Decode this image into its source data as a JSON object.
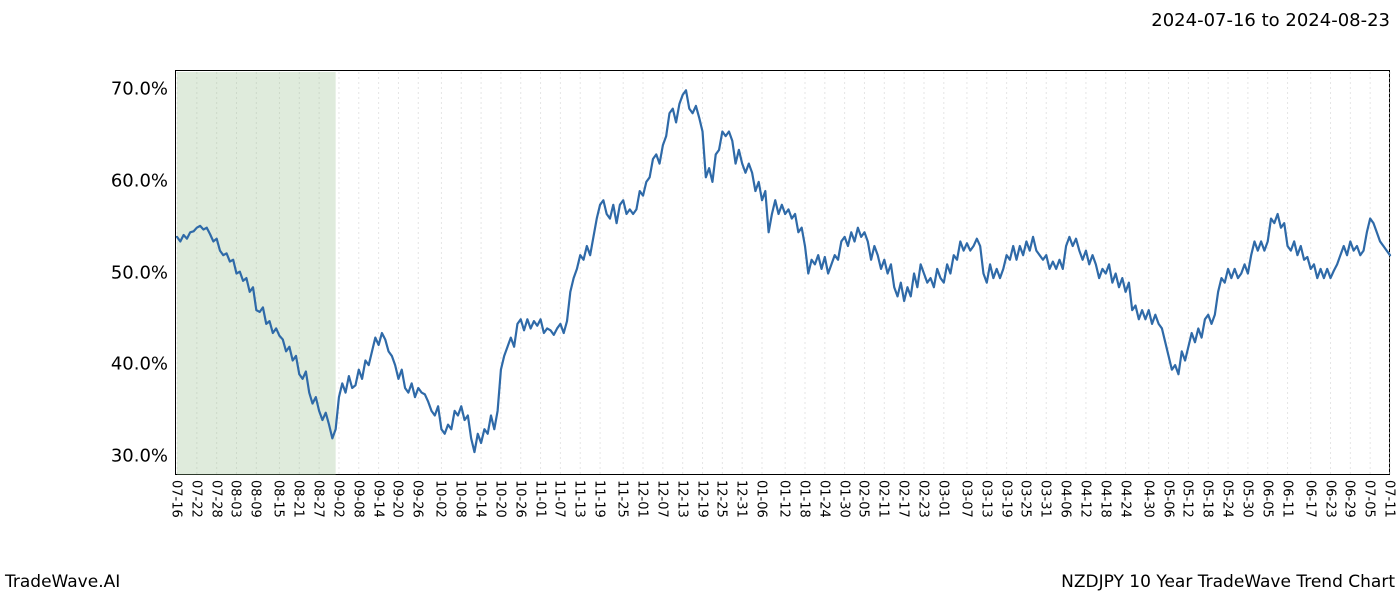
{
  "header": {
    "date_range": "2024-07-16 to 2024-08-23"
  },
  "footer": {
    "left": "TradeWave.AI",
    "right": "NZDJPY 10 Year TradeWave Trend Chart"
  },
  "chart": {
    "type": "line",
    "background_color": "#ffffff",
    "grid_color": "#e5e5e5",
    "axis_color": "#000000",
    "line_color": "#2f6aa8",
    "shade_color": "rgba(150,190,140,0.30)",
    "line_width": 2.2,
    "y": {
      "min": 28,
      "max": 72,
      "ticks": [
        30,
        40,
        50,
        60,
        70
      ],
      "tick_labels": [
        "30.0%",
        "40.0%",
        "50.0%",
        "60.0%",
        "70.0%"
      ],
      "label_fontsize": 18
    },
    "x": {
      "ticks": [
        "07-16",
        "07-22",
        "07-28",
        "08-03",
        "08-09",
        "08-15",
        "08-21",
        "08-27",
        "09-02",
        "09-08",
        "09-14",
        "09-20",
        "09-26",
        "10-02",
        "10-08",
        "10-14",
        "10-20",
        "10-26",
        "11-01",
        "11-07",
        "11-13",
        "11-19",
        "11-25",
        "12-01",
        "12-07",
        "12-13",
        "12-19",
        "12-25",
        "12-31",
        "01-06",
        "01-12",
        "01-18",
        "01-24",
        "01-30",
        "02-05",
        "02-11",
        "02-17",
        "02-23",
        "03-01",
        "03-07",
        "03-13",
        "03-19",
        "03-25",
        "03-31",
        "04-06",
        "04-12",
        "04-18",
        "04-24",
        "04-30",
        "05-06",
        "05-12",
        "05-18",
        "05-24",
        "05-30",
        "06-05",
        "06-11",
        "06-17",
        "06-23",
        "06-29",
        "07-05",
        "07-11"
      ],
      "label_fontsize": 13,
      "label_rotation": 90
    },
    "series": {
      "name": "NZDJPY",
      "values": [
        54.0,
        53.5,
        54.2,
        53.8,
        54.5,
        54.6,
        55.0,
        55.2,
        54.8,
        55.0,
        54.3,
        53.5,
        53.8,
        52.5,
        52.0,
        52.2,
        51.3,
        51.5,
        50.0,
        50.2,
        49.2,
        49.5,
        48.0,
        48.5,
        46.0,
        45.8,
        46.3,
        44.5,
        44.8,
        43.5,
        44.0,
        43.2,
        42.8,
        41.5,
        42.0,
        40.5,
        41.0,
        39.0,
        38.5,
        39.3,
        37.0,
        35.8,
        36.5,
        35.0,
        34.0,
        34.8,
        33.5,
        32.0,
        33.0,
        36.5,
        38.0,
        37.0,
        38.8,
        37.5,
        37.8,
        39.5,
        38.5,
        40.5,
        40.0,
        41.5,
        43.0,
        42.2,
        43.5,
        42.8,
        41.5,
        41.0,
        40.0,
        38.5,
        39.5,
        37.5,
        37.0,
        38.0,
        36.5,
        37.5,
        37.0,
        36.8,
        36.0,
        35.0,
        34.5,
        35.5,
        33.0,
        32.5,
        33.5,
        33.0,
        35.0,
        34.5,
        35.5,
        34.0,
        34.5,
        32.0,
        30.5,
        32.5,
        31.5,
        33.0,
        32.5,
        34.5,
        33.0,
        35.0,
        39.5,
        41.0,
        42.0,
        43.0,
        42.0,
        44.5,
        45.0,
        43.8,
        45.0,
        44.0,
        44.8,
        44.3,
        45.0,
        43.5,
        44.0,
        43.8,
        43.3,
        44.0,
        44.5,
        43.5,
        44.8,
        48.0,
        49.5,
        50.5,
        52.0,
        51.5,
        53.0,
        52.0,
        54.0,
        56.0,
        57.5,
        58.0,
        56.5,
        56.0,
        57.5,
        55.5,
        57.5,
        58.0,
        56.5,
        57.0,
        56.5,
        57.0,
        59.0,
        58.5,
        60.0,
        60.5,
        62.5,
        63.0,
        62.0,
        64.0,
        65.0,
        67.5,
        68.0,
        66.5,
        68.5,
        69.5,
        70.0,
        68.0,
        67.5,
        68.3,
        67.0,
        65.5,
        60.5,
        61.5,
        60.0,
        63.0,
        63.5,
        65.5,
        65.0,
        65.5,
        64.5,
        62.0,
        63.5,
        62.0,
        61.0,
        62.0,
        61.0,
        59.0,
        60.0,
        58.0,
        59.0,
        54.5,
        56.5,
        58.0,
        56.5,
        57.5,
        56.5,
        57.0,
        56.0,
        56.5,
        54.5,
        55.0,
        53.0,
        50.0,
        51.5,
        51.0,
        52.0,
        50.5,
        51.8,
        50.0,
        51.0,
        52.0,
        51.5,
        53.5,
        54.0,
        53.0,
        54.5,
        53.5,
        55.0,
        54.0,
        54.5,
        53.5,
        51.5,
        53.0,
        52.0,
        50.5,
        51.5,
        50.0,
        51.0,
        48.5,
        47.5,
        49.0,
        47.0,
        48.5,
        47.5,
        50.0,
        48.5,
        51.0,
        50.0,
        49.0,
        49.5,
        48.5,
        50.5,
        49.5,
        49.0,
        51.0,
        50.0,
        52.0,
        51.5,
        53.5,
        52.5,
        53.3,
        52.5,
        53.0,
        53.8,
        53.0,
        50.0,
        49.0,
        51.0,
        49.5,
        50.5,
        49.5,
        50.5,
        52.0,
        51.5,
        53.0,
        51.5,
        53.0,
        52.0,
        53.5,
        52.5,
        54.0,
        52.5,
        52.0,
        51.5,
        52.0,
        50.5,
        51.3,
        50.5,
        51.5,
        50.5,
        53.0,
        54.0,
        53.0,
        53.8,
        52.5,
        51.5,
        52.5,
        51.0,
        52.0,
        51.0,
        49.5,
        50.5,
        50.0,
        51.0,
        49.0,
        50.0,
        48.5,
        49.5,
        48.0,
        49.0,
        46.0,
        46.5,
        45.0,
        46.0,
        45.0,
        46.0,
        44.5,
        45.5,
        44.5,
        44.0,
        42.5,
        41.0,
        39.5,
        40.0,
        39.0,
        41.5,
        40.5,
        42.0,
        43.5,
        42.5,
        44.0,
        43.0,
        45.0,
        45.5,
        44.5,
        45.5,
        48.0,
        49.5,
        49.0,
        50.5,
        49.5,
        50.5,
        49.5,
        50.0,
        51.0,
        50.0,
        52.0,
        53.5,
        52.5,
        53.5,
        52.5,
        53.5,
        56.0,
        55.5,
        56.5,
        55.0,
        55.5,
        53.0,
        52.5,
        53.5,
        52.0,
        53.0,
        51.5,
        51.8,
        50.5,
        51.0,
        49.5,
        50.5,
        49.5,
        50.5,
        49.5,
        50.3,
        51.0,
        52.0,
        53.0,
        52.0,
        53.5,
        52.5,
        53.0,
        52.0,
        52.5,
        54.5,
        56.0,
        55.5,
        54.5,
        53.5,
        53.0,
        52.5,
        52.0
      ]
    },
    "shade_region": {
      "start_index": 0,
      "end_index": 48
    }
  }
}
